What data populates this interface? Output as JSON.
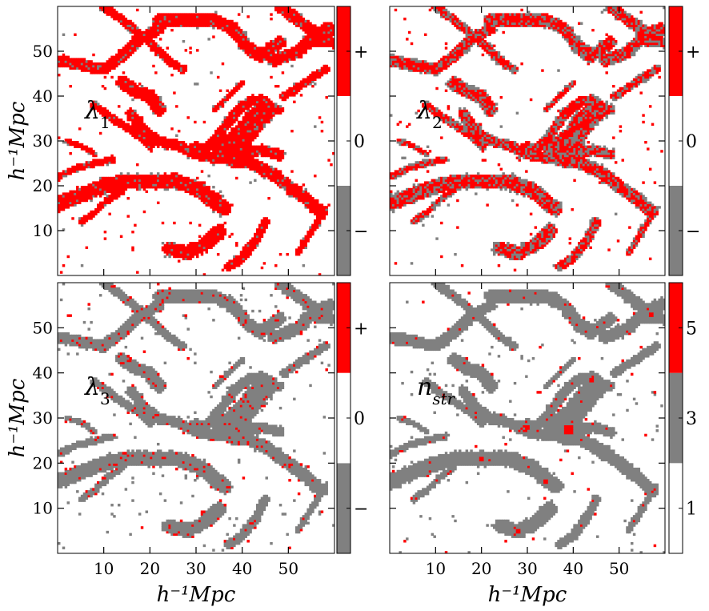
{
  "chart_data": [
    {
      "type": "heatmap",
      "panel_label": "λ1",
      "xlim": [
        0,
        60
      ],
      "ylim": [
        0,
        60
      ],
      "x_ticks": [
        "10",
        "20",
        "30",
        "40",
        "50"
      ],
      "y_ticks": [
        "10",
        "20",
        "30",
        "40",
        "50"
      ],
      "xlabel": "",
      "ylabel": "h⁻¹Mpc",
      "colorbar": {
        "levels": [
          {
            "label": "−",
            "color": "#808080"
          },
          {
            "label": "0",
            "color": "#ffffff"
          },
          {
            "label": "+",
            "color": "#ff0000"
          }
        ]
      },
      "dominant_color": "#ff0000",
      "secondary_color": "#808080"
    },
    {
      "type": "heatmap",
      "panel_label": "λ2",
      "xlim": [
        0,
        60
      ],
      "ylim": [
        0,
        60
      ],
      "x_ticks": [
        "10",
        "20",
        "30",
        "40",
        "50"
      ],
      "y_ticks": [
        "10",
        "20",
        "30",
        "40",
        "50"
      ],
      "xlabel": "",
      "ylabel": "",
      "colorbar": {
        "levels": [
          {
            "label": "−",
            "color": "#808080"
          },
          {
            "label": "0",
            "color": "#ffffff"
          },
          {
            "label": "+",
            "color": "#ff0000"
          }
        ]
      },
      "dominant_color": "#ff0000",
      "secondary_color": "#808080"
    },
    {
      "type": "heatmap",
      "panel_label": "λ3",
      "xlim": [
        0,
        60
      ],
      "ylim": [
        0,
        60
      ],
      "x_ticks": [
        "10",
        "20",
        "30",
        "40",
        "50"
      ],
      "y_ticks": [
        "10",
        "20",
        "30",
        "40",
        "50"
      ],
      "xlabel": "h⁻¹Mpc",
      "ylabel": "h⁻¹Mpc",
      "colorbar": {
        "levels": [
          {
            "label": "−",
            "color": "#808080"
          },
          {
            "label": "0",
            "color": "#ffffff"
          },
          {
            "label": "+",
            "color": "#ff0000"
          }
        ]
      },
      "dominant_color": "#808080",
      "secondary_color": "#ff0000"
    },
    {
      "type": "heatmap",
      "panel_label": "n_str",
      "xlim": [
        0,
        60
      ],
      "ylim": [
        0,
        60
      ],
      "x_ticks": [
        "10",
        "20",
        "30",
        "40",
        "50"
      ],
      "y_ticks": [
        "10",
        "20",
        "30",
        "40",
        "50"
      ],
      "xlabel": "h⁻¹Mpc",
      "ylabel": "",
      "colorbar": {
        "levels": [
          {
            "label": "1",
            "color": "#ffffff"
          },
          {
            "label": "3",
            "color": "#808080"
          },
          {
            "label": "5",
            "color": "#ff0000"
          }
        ]
      },
      "dominant_color": "#808080",
      "secondary_color": "#ff0000"
    }
  ],
  "filaments": [
    {
      "points": [
        [
          0,
          48
        ],
        [
          5,
          47
        ],
        [
          10,
          46
        ],
        [
          14,
          49
        ],
        [
          18,
          53
        ],
        [
          22,
          55
        ]
      ],
      "w": 1.6
    },
    {
      "points": [
        [
          10,
          60
        ],
        [
          14,
          57
        ],
        [
          20,
          52
        ],
        [
          24,
          48
        ],
        [
          27,
          46
        ]
      ],
      "w": 1.2
    },
    {
      "points": [
        [
          22,
          57
        ],
        [
          28,
          57
        ],
        [
          34,
          57
        ],
        [
          38,
          55
        ],
        [
          41,
          51
        ],
        [
          44,
          49
        ],
        [
          48,
          52
        ]
      ],
      "w": 1.8
    },
    {
      "points": [
        [
          14,
          43
        ],
        [
          17,
          41
        ],
        [
          20,
          40
        ],
        [
          22,
          37
        ]
      ],
      "w": 1.8
    },
    {
      "points": [
        [
          8,
          38
        ],
        [
          12,
          35
        ],
        [
          15,
          33
        ],
        [
          18,
          31
        ],
        [
          20,
          29
        ]
      ],
      "w": 1.1
    },
    {
      "points": [
        [
          16,
          36
        ],
        [
          19,
          32
        ],
        [
          22,
          30
        ],
        [
          26,
          29
        ],
        [
          30,
          27
        ],
        [
          35,
          26
        ],
        [
          40,
          27
        ],
        [
          44,
          28
        ],
        [
          48,
          27
        ]
      ],
      "w": 1.5
    },
    {
      "points": [
        [
          30,
          27
        ],
        [
          33,
          29
        ],
        [
          36,
          33
        ],
        [
          39,
          37
        ],
        [
          42,
          39
        ],
        [
          45,
          38
        ],
        [
          48,
          37
        ]
      ],
      "w": 1.4
    },
    {
      "points": [
        [
          36,
          28
        ],
        [
          40,
          31
        ],
        [
          43,
          35
        ],
        [
          45,
          37
        ]
      ],
      "w": 3.2
    },
    {
      "points": [
        [
          38,
          27
        ],
        [
          42,
          25
        ],
        [
          46,
          23
        ],
        [
          50,
          20
        ],
        [
          54,
          17
        ],
        [
          57,
          14
        ]
      ],
      "w": 1.8
    },
    {
      "points": [
        [
          0,
          16
        ],
        [
          5,
          18
        ],
        [
          10,
          20
        ],
        [
          15,
          21
        ],
        [
          20,
          21
        ],
        [
          26,
          21
        ],
        [
          31,
          19
        ],
        [
          36,
          15
        ]
      ],
      "w": 2.1
    },
    {
      "points": [
        [
          0,
          22
        ],
        [
          4,
          24
        ],
        [
          8,
          25
        ],
        [
          12,
          26
        ]
      ],
      "w": 1.0
    },
    {
      "points": [
        [
          5,
          12
        ],
        [
          8,
          14
        ],
        [
          11,
          17
        ],
        [
          14,
          19
        ]
      ],
      "w": 0.9
    },
    {
      "points": [
        [
          24,
          6
        ],
        [
          28,
          5
        ],
        [
          32,
          7
        ],
        [
          35,
          10
        ]
      ],
      "w": 1.9
    },
    {
      "points": [
        [
          37,
          2
        ],
        [
          40,
          4
        ],
        [
          43,
          8
        ],
        [
          45,
          12
        ]
      ],
      "w": 1.3
    },
    {
      "points": [
        [
          48,
          60
        ],
        [
          52,
          57
        ],
        [
          56,
          54
        ],
        [
          59,
          52
        ]
      ],
      "w": 1.6
    },
    {
      "points": [
        [
          47,
          48
        ],
        [
          52,
          50
        ],
        [
          56,
          54
        ],
        [
          59,
          55
        ]
      ],
      "w": 1.7
    },
    {
      "points": [
        [
          2,
          30
        ],
        [
          5,
          29
        ],
        [
          8,
          27
        ]
      ],
      "w": 0.8
    },
    {
      "points": [
        [
          49,
          40
        ],
        [
          52,
          42
        ],
        [
          55,
          44
        ],
        [
          58,
          46
        ]
      ],
      "w": 1.1
    },
    {
      "points": [
        [
          52,
          5
        ],
        [
          55,
          10
        ],
        [
          58,
          15
        ]
      ],
      "w": 0.9
    },
    {
      "points": [
        [
          34,
          37
        ],
        [
          38,
          41
        ],
        [
          40,
          43
        ]
      ],
      "w": 0.8
    }
  ],
  "clusters": [
    {
      "x": 39,
      "y": 27.5,
      "r": 3.6
    },
    {
      "x": 30,
      "y": 28,
      "r": 1.8
    },
    {
      "x": 44,
      "y": 38.5,
      "r": 1.8
    },
    {
      "x": 57,
      "y": 53,
      "r": 2.2
    },
    {
      "x": 20,
      "y": 21,
      "r": 1.6
    },
    {
      "x": 34,
      "y": 16,
      "r": 1.4
    },
    {
      "x": 28,
      "y": 5,
      "r": 1.6
    }
  ]
}
